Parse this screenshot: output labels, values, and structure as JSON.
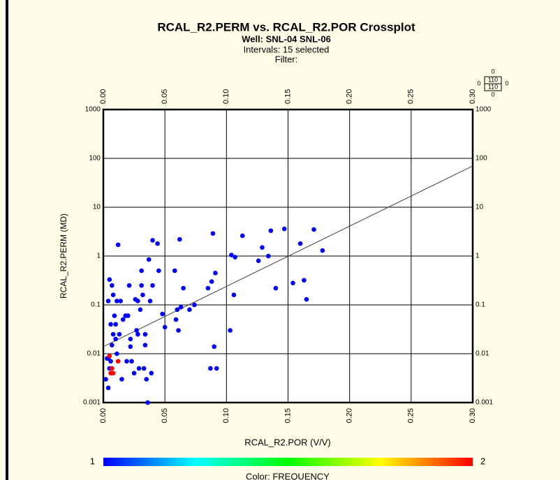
{
  "chart_data": {
    "type": "scatter",
    "title": "RCAL_R2.PERM vs. RCAL_R2.POR Crossplot",
    "subtitle": "Well: SNL-04 SNL-06",
    "intervals": "Intervals: 15 selected",
    "filter": "Filter:",
    "x_label": "RCAL_R2.POR (V/V)",
    "y_label": "RCAL_R2.PERM (MD)",
    "xlim": [
      0,
      0.3
    ],
    "ylim": [
      0.001,
      1000
    ],
    "log_y": true,
    "grid": true,
    "xticks": [
      {
        "value": 0,
        "label": "0.00"
      },
      0.05,
      {
        "value": 0.1,
        "label": "0.10"
      },
      0.15,
      {
        "value": 0.2,
        "label": "0.20"
      },
      0.25,
      {
        "value": 0.3,
        "label": "0.30"
      }
    ],
    "yticks": [
      1000,
      100,
      10,
      1,
      0.1,
      0.01,
      0.001
    ],
    "series": [
      {
        "color": "#0000ff",
        "x": [
          0.002,
          0.003,
          0.004,
          0.006,
          0.005,
          0.004,
          0.007,
          0.008,
          0.006,
          0.009,
          0.011,
          0.01,
          0.004,
          0.005,
          0.007,
          0.008,
          0.01,
          0.011,
          0.012,
          0.014,
          0.015,
          0.013,
          0.016,
          0.018,
          0.019,
          0.02,
          0.021,
          0.022,
          0.022,
          0.023,
          0.025,
          0.026,
          0.027,
          0.028,
          0.028,
          0.029,
          0.03,
          0.031,
          0.031,
          0.032,
          0.033,
          0.034,
          0.034,
          0.035,
          0.037,
          0.036,
          0.038,
          0.039,
          0.04,
          0.04,
          0.044,
          0.045,
          0.048,
          0.05,
          0.058,
          0.059,
          0.06,
          0.061,
          0.062,
          0.063,
          0.065,
          0.07,
          0.074,
          0.085,
          0.087,
          0.088,
          0.09,
          0.089,
          0.091,
          0.092,
          0.103,
          0.104,
          0.106,
          0.107,
          0.113,
          0.126,
          0.129,
          0.134,
          0.136,
          0.14,
          0.147,
          0.154,
          0.16,
          0.163,
          0.165,
          0.171,
          0.178
        ],
        "values": [
          0.003,
          0.008,
          0.008,
          0.007,
          0.005,
          0.002,
          0.015,
          0.025,
          0.04,
          0.06,
          0.12,
          0.04,
          0.12,
          0.33,
          0.25,
          0.16,
          0.02,
          0.01,
          1.7,
          0.12,
          0.003,
          0.025,
          0.05,
          0.06,
          0.007,
          0.06,
          0.25,
          0.02,
          0.014,
          0.007,
          0.004,
          0.13,
          0.03,
          0.12,
          0.025,
          0.005,
          0.08,
          0.5,
          0.25,
          0.16,
          0.005,
          0.025,
          0.015,
          0.003,
          0.85,
          0.001,
          0.12,
          0.004,
          2.1,
          0.25,
          1.8,
          0.5,
          0.065,
          0.035,
          0.5,
          0.05,
          0.08,
          0.03,
          2.2,
          0.09,
          0.22,
          0.08,
          0.1,
          0.22,
          0.005,
          0.3,
          0.014,
          2.9,
          0.45,
          0.005,
          0.03,
          1.05,
          0.16,
          0.95,
          2.6,
          0.8,
          1.5,
          1.0,
          3.3,
          0.22,
          3.6,
          0.28,
          1.8,
          0.32,
          0.13,
          3.5,
          1.3
        ]
      },
      {
        "color": "#ff0000",
        "x": [
          0.005,
          0.006,
          0.007,
          0.008,
          0.012
        ],
        "values": [
          0.009,
          0.004,
          0.005,
          0.004,
          0.007
        ]
      }
    ],
    "trend_line": {
      "color": "#404040",
      "x": [
        0,
        0.3
      ],
      "values": [
        0.014,
        70
      ]
    },
    "colorbar": {
      "label": "Color: FREQUENCY",
      "min": 1,
      "max": 2,
      "colors": [
        "#0000ff",
        "#00ffff",
        "#00ff00",
        "#ffff00",
        "#ff0000"
      ]
    },
    "scale_box": {
      "top": 0,
      "left": 0,
      "upper": 110,
      "lower": 110,
      "right": 0,
      "bottom": 0
    }
  }
}
